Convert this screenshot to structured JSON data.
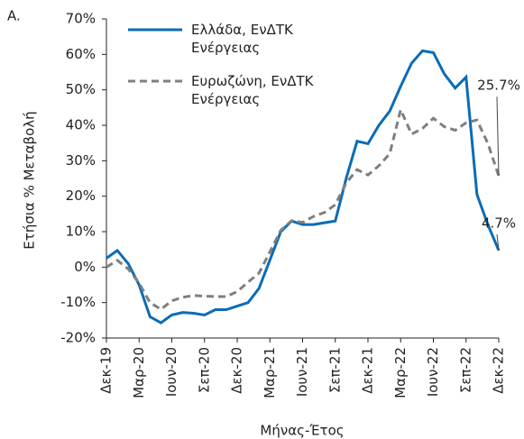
{
  "chart_data": {
    "type": "line",
    "panel_label": "A.",
    "y_label": "Ετήσια % Μεταβολή",
    "x_label": "Μήνας-Έτος",
    "categories": [
      "Δεκ-19",
      null,
      null,
      "Μαρ-20",
      null,
      null,
      "Ιουν-20",
      null,
      null,
      "Σεπ-20",
      null,
      null,
      "Δεκ-20",
      null,
      null,
      "Μαρ-21",
      null,
      null,
      "Ιουν-21",
      null,
      null,
      "Σεπ-21",
      null,
      null,
      "Δεκ-21",
      null,
      null,
      "Μαρ-22",
      null,
      null,
      "Ιουν-22",
      null,
      null,
      "Σεπ-22",
      null,
      null,
      "Δεκ-22"
    ],
    "series": [
      {
        "name": "Ελλάδα, ΕνΔΤΚ Ενέργειας",
        "color": "#0a6cb6",
        "dashed": false,
        "values": [
          2.5,
          4.7,
          1.0,
          -5,
          -14,
          -15.7,
          -13.5,
          -12.8,
          -13,
          -13.5,
          -12,
          -12,
          -11,
          -10,
          -6,
          2,
          10,
          13,
          12,
          12,
          12.5,
          13,
          25,
          35.5,
          34.8,
          40,
          44,
          51,
          57.5,
          61,
          60.5,
          54.5,
          50.5,
          53.6,
          20.5,
          12,
          4.7
        ],
        "value_labels": [
          null,
          null,
          null,
          null,
          null,
          null,
          null,
          null,
          null,
          null,
          null,
          null,
          null,
          null,
          null,
          null,
          null,
          null,
          null,
          null,
          null,
          null,
          null,
          null,
          null,
          null,
          null,
          null,
          null,
          null,
          null,
          null,
          null,
          null,
          null,
          null,
          "4.7%"
        ]
      },
      {
        "name": "Ευρωζώνη, ΕνΔΤΚ Ενέργειας",
        "color": "#7f7f7f",
        "dashed": true,
        "values": [
          0,
          1.9,
          -0.5,
          -4.5,
          -10,
          -11.9,
          -9.5,
          -8.5,
          -8,
          -8.2,
          -8.3,
          -8.3,
          -6.9,
          -4.2,
          -1.7,
          4.3,
          10.4,
          13.1,
          12.6,
          14.3,
          15.4,
          17.6,
          23.7,
          27.5,
          26,
          28.6,
          32,
          44.4,
          37.5,
          39.1,
          42,
          39.6,
          38.6,
          40.7,
          41.5,
          34.9,
          25.7
        ],
        "value_labels": [
          null,
          null,
          null,
          null,
          null,
          null,
          null,
          null,
          null,
          null,
          null,
          null,
          null,
          null,
          null,
          null,
          null,
          null,
          null,
          null,
          null,
          null,
          null,
          null,
          null,
          null,
          null,
          null,
          null,
          null,
          null,
          null,
          null,
          null,
          null,
          null,
          "25.7%"
        ]
      }
    ],
    "ylim": [
      -20,
      70
    ],
    "yticks": [
      {
        "value": -20,
        "label": "-20%"
      },
      {
        "value": -10,
        "label": "-10%"
      },
      {
        "value": 0,
        "label": "0%"
      },
      {
        "value": 10,
        "label": "10%"
      },
      {
        "value": 20,
        "label": "20%"
      },
      {
        "value": 30,
        "label": "30%"
      },
      {
        "value": 40,
        "label": "40%"
      },
      {
        "value": 50,
        "label": "50%"
      },
      {
        "value": 60,
        "label": "60%"
      },
      {
        "value": 70,
        "label": "70%"
      }
    ],
    "grid": false
  }
}
